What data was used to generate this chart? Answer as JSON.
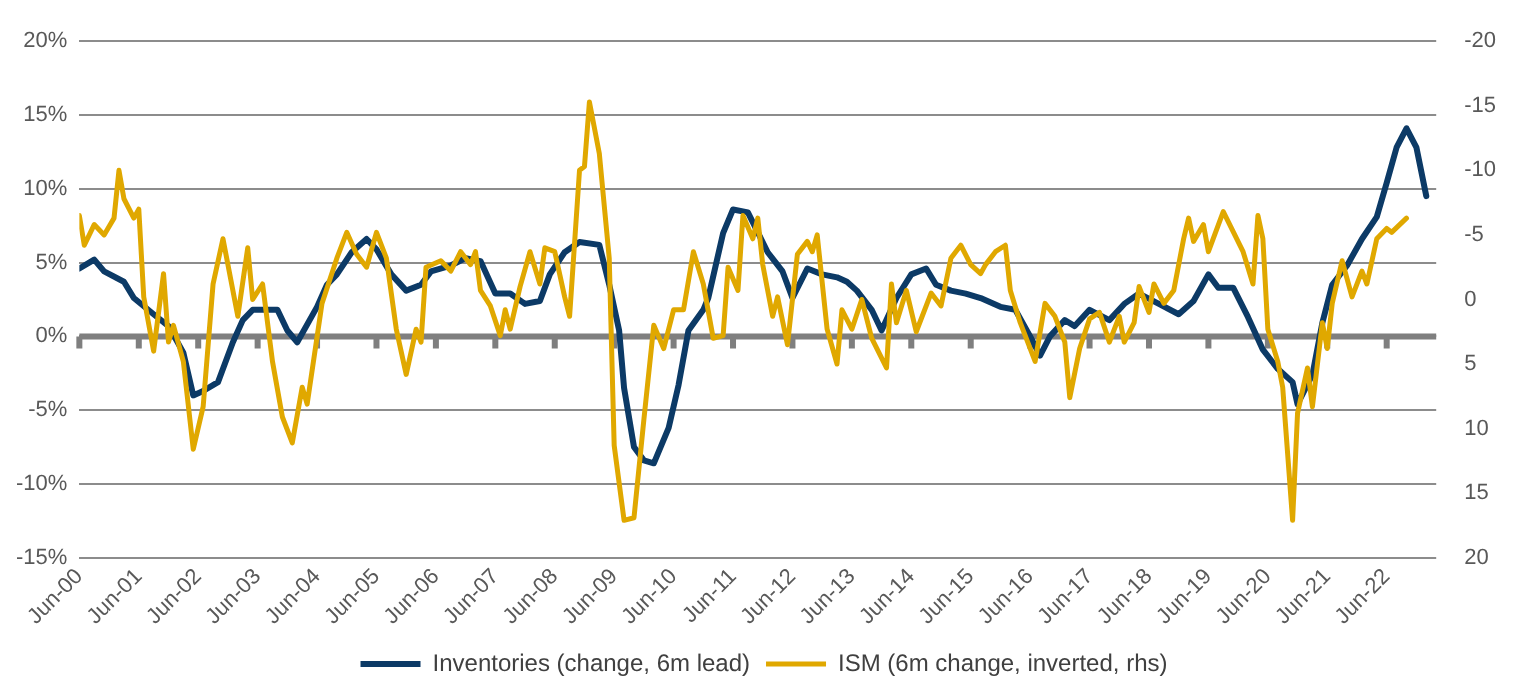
{
  "chart_data": {
    "type": "line",
    "legend": "bottom",
    "grid": "y",
    "marker": "none",
    "line_style": "solid",
    "xlim": [
      "2000-06",
      "2023-04"
    ],
    "xticks": [
      {
        "value": "2000-06",
        "label": "Jun-00"
      },
      {
        "value": "2001-06",
        "label": "Jun-01"
      },
      {
        "value": "2002-06",
        "label": "Jun-02"
      },
      {
        "value": "2003-06",
        "label": "Jun-03"
      },
      {
        "value": "2004-06",
        "label": "Jun-04"
      },
      {
        "value": "2005-06",
        "label": "Jun-05"
      },
      {
        "value": "2006-06",
        "label": "Jun-06"
      },
      {
        "value": "2007-06",
        "label": "Jun-07"
      },
      {
        "value": "2008-06",
        "label": "Jun-08"
      },
      {
        "value": "2009-06",
        "label": "Jun-09"
      },
      {
        "value": "2010-06",
        "label": "Jun-10"
      },
      {
        "value": "2011-06",
        "label": "Jun-11"
      },
      {
        "value": "2012-06",
        "label": "Jun-12"
      },
      {
        "value": "2013-06",
        "label": "Jun-13"
      },
      {
        "value": "2014-06",
        "label": "Jun-14"
      },
      {
        "value": "2015-06",
        "label": "Jun-15"
      },
      {
        "value": "2016-06",
        "label": "Jun-16"
      },
      {
        "value": "2017-06",
        "label": "Jun-17"
      },
      {
        "value": "2018-06",
        "label": "Jun-18"
      },
      {
        "value": "2019-06",
        "label": "Jun-19"
      },
      {
        "value": "2020-06",
        "label": "Jun-20"
      },
      {
        "value": "2021-06",
        "label": "Jun-21"
      },
      {
        "value": "2022-06",
        "label": "Jun-22"
      }
    ],
    "ylim": [
      -15,
      20
    ],
    "yticks": [
      {
        "value": -15,
        "label": "-15%"
      },
      {
        "value": -10,
        "label": "-10%"
      },
      {
        "value": -5,
        "label": "-5%"
      },
      {
        "value": 0,
        "label": "0%"
      },
      {
        "value": 5,
        "label": "5%"
      },
      {
        "value": 10,
        "label": "10%"
      },
      {
        "value": 15,
        "label": "15%"
      },
      {
        "value": 20,
        "label": "20%"
      }
    ],
    "y2lim": [
      20,
      -20
    ],
    "y2ticks": [
      -20,
      -15,
      -10,
      -5,
      0,
      5,
      10,
      15,
      20
    ],
    "ref_lines": [
      {
        "axis": "y",
        "value": 0,
        "color": "#7f7f7f"
      }
    ],
    "series": [
      {
        "name": "Inventories (change, 6m lead)",
        "color": "#0c3a66",
        "x": [
          "2000-06",
          "2000-09",
          "2000-11",
          "2001-03",
          "2001-05",
          "2001-09",
          "2001-12",
          "2002-03",
          "2002-05",
          "2002-07",
          "2002-10",
          "2003-01",
          "2003-03",
          "2003-05",
          "2003-08",
          "2003-10",
          "2003-12",
          "2004-02",
          "2004-06",
          "2004-08",
          "2004-10",
          "2005-01",
          "2005-04",
          "2005-06",
          "2005-09",
          "2005-12",
          "2006-03",
          "2006-05",
          "2006-09",
          "2006-12",
          "2007-03",
          "2007-06",
          "2007-09",
          "2007-12",
          "2008-03",
          "2008-05",
          "2008-08",
          "2008-11",
          "2009-03",
          "2009-05",
          "2009-07",
          "2009-08",
          "2009-10",
          "2009-12",
          "2010-02",
          "2010-05",
          "2010-07",
          "2010-09",
          "2010-12",
          "2011-01",
          "2011-04",
          "2011-06",
          "2011-09",
          "2012-01",
          "2012-04",
          "2012-06",
          "2012-09",
          "2012-12",
          "2013-03",
          "2013-05",
          "2013-07",
          "2013-10",
          "2013-12",
          "2014-03",
          "2014-06",
          "2014-09",
          "2014-11",
          "2015-02",
          "2015-05",
          "2015-08",
          "2015-12",
          "2016-03",
          "2016-06",
          "2016-08",
          "2016-10",
          "2017-01",
          "2017-03",
          "2017-06",
          "2017-10",
          "2018-01",
          "2018-04",
          "2018-08",
          "2018-12",
          "2019-03",
          "2019-06",
          "2019-08",
          "2019-11",
          "2020-02",
          "2020-05",
          "2020-08",
          "2020-11",
          "2020-12",
          "2021-03",
          "2021-05",
          "2021-07",
          "2021-10",
          "2022-01",
          "2022-04",
          "2022-06",
          "2022-08",
          "2022-10",
          "2022-12",
          "2023-02"
        ],
        "values": [
          4.6,
          5.2,
          4.4,
          3.7,
          2.6,
          1.5,
          0.7,
          -1.1,
          -4,
          -3.7,
          -3.1,
          -0.4,
          1.1,
          1.8,
          1.8,
          1.8,
          0.4,
          -0.4,
          2,
          3.5,
          4.2,
          5.7,
          6.6,
          5.9,
          4.2,
          3.1,
          3.5,
          4.4,
          4.8,
          5.3,
          5.1,
          2.9,
          2.9,
          2.2,
          2.4,
          4.2,
          5.7,
          6.4,
          6.2,
          3.5,
          0.4,
          -3.5,
          -7.5,
          -8.4,
          -8.6,
          -6.2,
          -3.3,
          0.4,
          1.8,
          2.6,
          7,
          8.6,
          8.4,
          5.7,
          4.4,
          2.6,
          4.6,
          4.2,
          4,
          3.7,
          3.1,
          1.8,
          0.4,
          2.6,
          4.2,
          4.6,
          3.5,
          3.1,
          2.9,
          2.6,
          2,
          1.8,
          0,
          -1.3,
          0,
          1.1,
          0.7,
          1.8,
          1.1,
          2.2,
          2.9,
          2.2,
          1.5,
          2.4,
          4.2,
          3.3,
          3.3,
          1.3,
          -0.9,
          -2.2,
          -3.1,
          -4.6,
          -2.6,
          0.9,
          3.5,
          4.8,
          6.6,
          8.1,
          10.4,
          12.8,
          14.1,
          12.8,
          9.5
        ]
      },
      {
        "name": "ISM (6m change, inverted, rhs)",
        "color": "#e0a800",
        "axis": "y2",
        "x": [
          "2000-06",
          "2000-07",
          "2000-09",
          "2000-11",
          "2001-01",
          "2001-02",
          "2001-03",
          "2001-05",
          "2001-06",
          "2001-07",
          "2001-09",
          "2001-11",
          "2001-12",
          "2002-01",
          "2002-03",
          "2002-05",
          "2002-07",
          "2002-09",
          "2002-11",
          "2003-02",
          "2003-04",
          "2003-05",
          "2003-07",
          "2003-09",
          "2003-11",
          "2004-01",
          "2004-03",
          "2004-04",
          "2004-07",
          "2004-10",
          "2004-12",
          "2005-02",
          "2005-04",
          "2005-06",
          "2005-08",
          "2005-10",
          "2005-12",
          "2006-02",
          "2006-03",
          "2006-04",
          "2006-07",
          "2006-09",
          "2006-11",
          "2007-01",
          "2007-02",
          "2007-03",
          "2007-05",
          "2007-07",
          "2007-08",
          "2007-09",
          "2007-11",
          "2008-01",
          "2008-03",
          "2008-04",
          "2008-06",
          "2008-08",
          "2008-09",
          "2008-11",
          "2008-12",
          "2009-01",
          "2009-03",
          "2009-05",
          "2009-06",
          "2009-08",
          "2009-10",
          "2009-12",
          "2010-02",
          "2010-04",
          "2010-06",
          "2010-08",
          "2010-10",
          "2010-12",
          "2011-02",
          "2011-04",
          "2011-05",
          "2011-07",
          "2011-08",
          "2011-10",
          "2011-11",
          "2011-12",
          "2012-02",
          "2012-03",
          "2012-05",
          "2012-07",
          "2012-09",
          "2012-10",
          "2012-11",
          "2013-01",
          "2013-03",
          "2013-04",
          "2013-06",
          "2013-08",
          "2013-10",
          "2014-01",
          "2014-02",
          "2014-03",
          "2014-05",
          "2014-07",
          "2014-10",
          "2014-12",
          "2015-02",
          "2015-04",
          "2015-06",
          "2015-08",
          "2015-09",
          "2015-11",
          "2016-01",
          "2016-02",
          "2016-04",
          "2016-07",
          "2016-09",
          "2016-11",
          "2017-01",
          "2017-02",
          "2017-04",
          "2017-06",
          "2017-08",
          "2017-10",
          "2017-12",
          "2018-01",
          "2018-03",
          "2018-04",
          "2018-06",
          "2018-07",
          "2018-09",
          "2018-11",
          "2019-01",
          "2019-02",
          "2019-03",
          "2019-05",
          "2019-06",
          "2019-09",
          "2020-01",
          "2020-03",
          "2020-04",
          "2020-05",
          "2020-06",
          "2020-08",
          "2020-09",
          "2020-11",
          "2020-12",
          "2021-02",
          "2021-03",
          "2021-05",
          "2021-06",
          "2021-07",
          "2021-09",
          "2021-11",
          "2022-01",
          "2022-02",
          "2022-04",
          "2022-06",
          "2022-07",
          "2022-10"
        ],
        "values": [
          -6.5,
          -4.2,
          -5.8,
          -5,
          -6.3,
          -10,
          -7.8,
          -6.3,
          -7,
          -0.2,
          4,
          -2,
          3.3,
          2,
          4.8,
          11.6,
          8.3,
          -1.2,
          -4.7,
          1.3,
          -4,
          0,
          -1.2,
          4.8,
          9.1,
          11.1,
          6.8,
          8.1,
          0.3,
          -3.2,
          -5.2,
          -3.5,
          -2.5,
          -5.2,
          -3.2,
          2.3,
          5.8,
          2.3,
          3.3,
          -2.5,
          -3,
          -2.2,
          -3.7,
          -2.7,
          -3.7,
          -0.7,
          0.5,
          2.8,
          0.8,
          2.3,
          -1,
          -3.7,
          -1.2,
          -4,
          -3.7,
          -0.2,
          1.3,
          -10,
          -10.3,
          -15.3,
          -11.3,
          -3.2,
          11.3,
          17.1,
          16.9,
          9.3,
          2,
          3.8,
          0.8,
          0.8,
          -3.7,
          -1.2,
          3,
          2.8,
          -2.5,
          -0.7,
          -6.5,
          -4.7,
          -6.3,
          -2.7,
          1.3,
          -0.2,
          3.5,
          -3.5,
          -4.5,
          -3.7,
          -5,
          2.3,
          5,
          0.8,
          2.3,
          0,
          3,
          5.3,
          -1.2,
          1.8,
          -0.7,
          2.5,
          -0.5,
          0.5,
          -3.2,
          -4.2,
          -2.7,
          -2,
          -2.7,
          -3.7,
          -4.2,
          -0.7,
          1.8,
          4.8,
          0.3,
          1.3,
          3.3,
          7.6,
          3.8,
          1.5,
          1,
          3.3,
          1.3,
          3.3,
          1.8,
          -1,
          1,
          -1.2,
          0.3,
          -0.7,
          -4.7,
          -6.3,
          -4.5,
          -5.8,
          -3.7,
          -6.8,
          -3.7,
          -1.2,
          -6.5,
          -4.7,
          2.3,
          4.8,
          6.8,
          17.1,
          8.8,
          5.3,
          8.3,
          1.8,
          3.8,
          0.3,
          -3,
          -0.2,
          -2.2,
          -1.2,
          -4.7,
          -5.5,
          -5.2,
          -6.3
        ]
      }
    ]
  }
}
